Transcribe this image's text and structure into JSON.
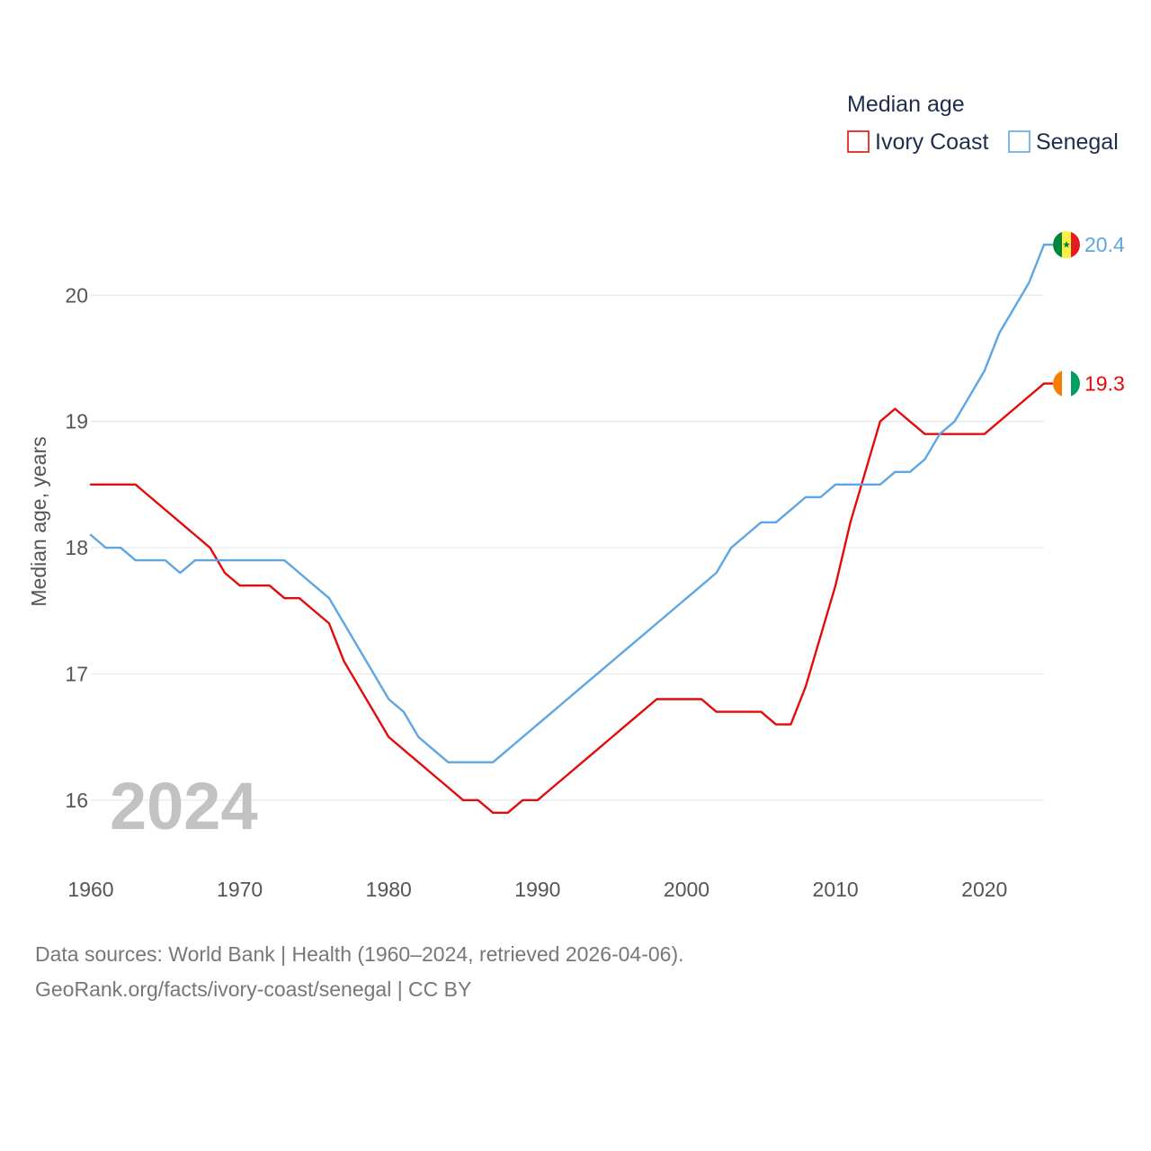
{
  "chart_data": {
    "type": "line",
    "ylabel": "Median age, years",
    "xlabel": "",
    "xlim": [
      1960,
      2024
    ],
    "ylim": [
      15.5,
      20.7
    ],
    "x_ticks": [
      1960,
      1970,
      1980,
      1990,
      2000,
      2010,
      2020
    ],
    "y_ticks": [
      16,
      17,
      18,
      19,
      20
    ],
    "grid": true,
    "legend": {
      "title": "Median age",
      "placement": "top-right"
    },
    "current_year": "2024",
    "x": [
      1960,
      1961,
      1962,
      1963,
      1964,
      1965,
      1966,
      1967,
      1968,
      1969,
      1970,
      1971,
      1972,
      1973,
      1974,
      1975,
      1976,
      1977,
      1978,
      1979,
      1980,
      1981,
      1982,
      1983,
      1984,
      1985,
      1986,
      1987,
      1988,
      1989,
      1990,
      1991,
      1992,
      1993,
      1994,
      1995,
      1996,
      1997,
      1998,
      1999,
      2000,
      2001,
      2002,
      2003,
      2004,
      2005,
      2006,
      2007,
      2008,
      2009,
      2010,
      2011,
      2012,
      2013,
      2014,
      2015,
      2016,
      2017,
      2018,
      2019,
      2020,
      2021,
      2022,
      2023,
      2024
    ],
    "series": [
      {
        "name": "Ivory Coast",
        "color": "#e30b0b",
        "end_label": "19.3",
        "values": [
          18.5,
          18.5,
          18.5,
          18.5,
          18.4,
          18.3,
          18.2,
          18.1,
          18.0,
          17.8,
          17.7,
          17.7,
          17.7,
          17.6,
          17.6,
          17.5,
          17.4,
          17.1,
          16.9,
          16.7,
          16.5,
          16.4,
          16.3,
          16.2,
          16.1,
          16.0,
          16.0,
          15.9,
          15.9,
          16.0,
          16.0,
          16.1,
          16.2,
          16.3,
          16.4,
          16.5,
          16.6,
          16.7,
          16.8,
          16.8,
          16.8,
          16.8,
          16.7,
          16.7,
          16.7,
          16.7,
          16.6,
          16.6,
          16.9,
          17.3,
          17.7,
          18.2,
          18.6,
          19.0,
          19.1,
          19.0,
          18.9,
          18.9,
          18.9,
          18.9,
          18.9,
          19.0,
          19.1,
          19.2,
          19.3
        ]
      },
      {
        "name": "Senegal",
        "color": "#5ea6e3",
        "end_label": "20.4",
        "values": [
          18.1,
          18.0,
          18.0,
          17.9,
          17.9,
          17.9,
          17.8,
          17.9,
          17.9,
          17.9,
          17.9,
          17.9,
          17.9,
          17.9,
          17.8,
          17.7,
          17.6,
          17.4,
          17.2,
          17.0,
          16.8,
          16.7,
          16.5,
          16.4,
          16.3,
          16.3,
          16.3,
          16.3,
          16.4,
          16.5,
          16.6,
          16.7,
          16.8,
          16.9,
          17.0,
          17.1,
          17.2,
          17.3,
          17.4,
          17.5,
          17.6,
          17.7,
          17.8,
          18.0,
          18.1,
          18.2,
          18.2,
          18.3,
          18.4,
          18.4,
          18.5,
          18.5,
          18.5,
          18.5,
          18.6,
          18.6,
          18.7,
          18.9,
          19.0,
          19.2,
          19.4,
          19.7,
          19.9,
          20.1,
          20.4
        ]
      }
    ]
  },
  "footer": {
    "line1": "Data sources: World Bank | Health (1960–2024, retrieved 2026-04-06).",
    "line2": "GeoRank.org/facts/ivory-coast/senegal | CC BY"
  }
}
